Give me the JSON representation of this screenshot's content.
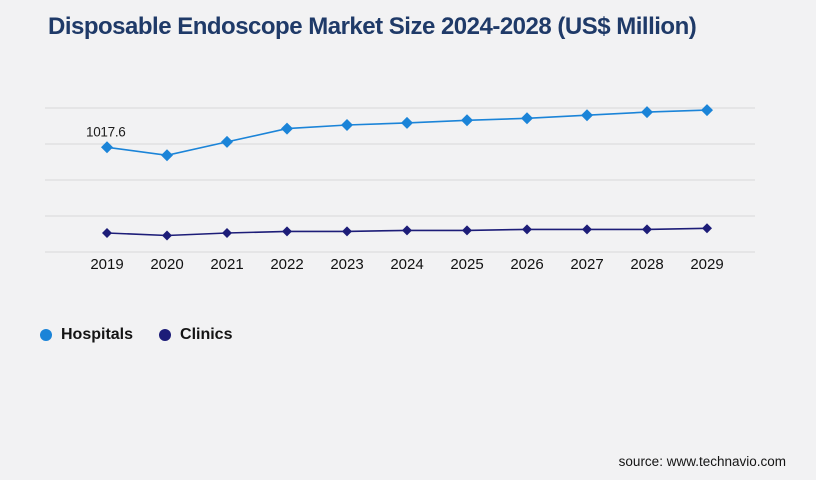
{
  "chart_data": {
    "type": "line",
    "title": "Disposable Endoscope Market Size 2024-2028 (US$ Million)",
    "categories": [
      "2019",
      "2020",
      "2021",
      "2022",
      "2023",
      "2024",
      "2025",
      "2026",
      "2027",
      "2028",
      "2029"
    ],
    "series": [
      {
        "name": "Hospitals",
        "color": "#1b84d8",
        "marker": "diamond",
        "values": [
          1017.6,
          940,
          1070,
          1200,
          1235,
          1255,
          1280,
          1300,
          1330,
          1360,
          1380
        ]
      },
      {
        "name": "Clinics",
        "color": "#1d1d78",
        "marker": "diamond",
        "values": [
          185,
          160,
          185,
          200,
          200,
          210,
          210,
          220,
          220,
          220,
          230
        ]
      }
    ],
    "data_labels": [
      {
        "series": "Hospitals",
        "category": "2019",
        "text": "1017.6"
      }
    ],
    "xlabel": "",
    "ylabel": "",
    "ylim": [
      0,
      1400
    ],
    "gridline_values": [
      0,
      350,
      700,
      1050,
      1400
    ],
    "grid": true,
    "legend_position": "bottom-left"
  },
  "footer": {
    "source": "source: www.technavio.com"
  },
  "colors": {
    "title": "#1f3a68",
    "background": "#f2f2f3",
    "gridline": "#d8d8d8",
    "tick_text": "#111111",
    "hospitals": "#1b84d8",
    "clinics": "#1d1d78"
  }
}
